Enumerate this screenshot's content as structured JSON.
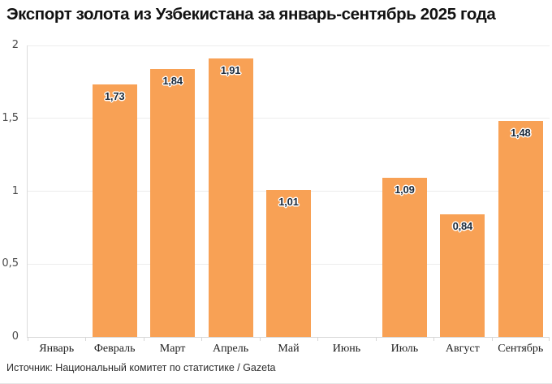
{
  "title": "Экспорт золота из Узбекистана за январь-сентябрь 2025 года",
  "source": "Источник: Национальный комитет по статистике / Gazeta",
  "colors": {
    "bar": "#F8A155",
    "bar_label_text": "#1c2a3a",
    "bar_label_halo": "#ffffff",
    "grid": "#ececec",
    "axis": "#d7d7d7",
    "title_text": "#111111",
    "month_text": "#1f1f1f",
    "ytick_text": "#4a4a4a",
    "source_text": "#2b2b2b",
    "background": "#ffffff"
  },
  "chart_data": {
    "type": "bar",
    "title": "Экспорт золота из Узбекистана за январь-сентябрь 2025 года",
    "categories": [
      "Январь",
      "Февраль",
      "Март",
      "Апрель",
      "Май",
      "Июнь",
      "Июль",
      "Август",
      "Сентябрь"
    ],
    "values": [
      null,
      1.73,
      1.84,
      1.91,
      1.01,
      null,
      1.09,
      0.84,
      1.48
    ],
    "value_labels": [
      "",
      "1,73",
      "1,84",
      "1,91",
      "1,01",
      "",
      "1,09",
      "0,84",
      "1,48"
    ],
    "xlabel": "",
    "ylabel": "",
    "ylim": [
      0,
      2
    ],
    "yticks": [
      0,
      0.5,
      1,
      1.5,
      2
    ],
    "ytick_labels": [
      "0",
      "0,5",
      "1",
      "1,5",
      "2"
    ],
    "grid": true,
    "legend_position": "none",
    "bar_orientation": "vertical"
  }
}
